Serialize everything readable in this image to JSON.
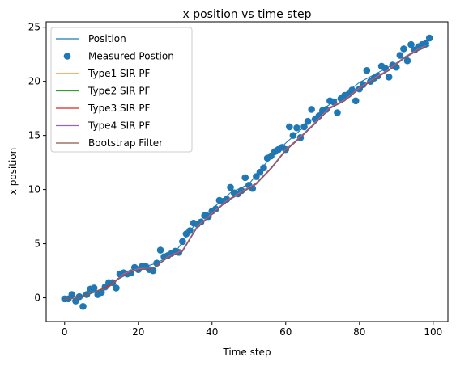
{
  "chart_data": {
    "type": "line",
    "title": "x position vs time step",
    "xlabel": "Time step",
    "ylabel": "x position",
    "xlim": [
      -5,
      104
    ],
    "ylim": [
      -2.2,
      25.5
    ],
    "xticks": [
      "0",
      "20",
      "40",
      "60",
      "80",
      "100"
    ],
    "yticks": [
      "0",
      "5",
      "10",
      "15",
      "20",
      "25"
    ],
    "grid": false,
    "legend_location": "upper-left",
    "colors": {
      "position": "#1f77b4",
      "measured": "#1f77b4",
      "type1": "#ff7f0e",
      "type2": "#2ca02c",
      "type3": "#d62728",
      "type4": "#9467bd",
      "bootstrap": "#8c564b"
    },
    "series": [
      {
        "name": "Position",
        "kind": "line",
        "x": [
          0,
          5,
          10,
          15,
          20,
          25,
          30,
          35,
          40,
          45,
          50,
          55,
          60,
          65,
          70,
          75,
          80,
          85,
          90,
          95,
          99
        ],
        "y": [
          0.0,
          0.2,
          0.8,
          1.8,
          2.7,
          3.2,
          4.2,
          6.6,
          8.2,
          9.7,
          10.5,
          12.6,
          14.3,
          15.8,
          17.4,
          18.6,
          19.9,
          20.8,
          21.7,
          22.7,
          23.3
        ]
      },
      {
        "name": "Measured Postion",
        "kind": "scatter",
        "x": [
          0,
          1,
          2,
          3,
          4,
          5,
          6,
          7,
          8,
          9,
          10,
          11,
          12,
          13,
          14,
          15,
          16,
          17,
          18,
          19,
          20,
          21,
          22,
          23,
          24,
          25,
          26,
          27,
          28,
          29,
          30,
          31,
          32,
          33,
          34,
          35,
          36,
          37,
          38,
          39,
          40,
          41,
          42,
          43,
          44,
          45,
          46,
          47,
          48,
          49,
          50,
          51,
          52,
          53,
          54,
          55,
          56,
          57,
          58,
          59,
          60,
          61,
          62,
          63,
          64,
          65,
          66,
          67,
          68,
          69,
          70,
          71,
          72,
          73,
          74,
          75,
          76,
          77,
          78,
          79,
          80,
          81,
          82,
          83,
          84,
          85,
          86,
          87,
          88,
          89,
          90,
          91,
          92,
          93,
          94,
          95,
          96,
          97,
          98,
          99
        ],
        "y": [
          -0.1,
          -0.1,
          0.3,
          -0.3,
          0.1,
          -0.8,
          0.3,
          0.8,
          0.9,
          0.3,
          0.5,
          1.0,
          1.4,
          1.4,
          0.9,
          2.2,
          2.3,
          2.2,
          2.3,
          2.8,
          2.6,
          2.9,
          2.9,
          2.6,
          2.5,
          3.2,
          4.4,
          3.8,
          3.9,
          4.1,
          4.3,
          4.2,
          5.2,
          5.9,
          6.2,
          6.9,
          6.8,
          7.0,
          7.6,
          7.5,
          8.0,
          8.2,
          9.0,
          8.9,
          9.1,
          10.2,
          9.7,
          9.6,
          9.9,
          11.1,
          10.4,
          10.1,
          11.2,
          11.6,
          12.0,
          12.9,
          13.1,
          13.5,
          13.7,
          13.9,
          13.7,
          15.8,
          15.0,
          15.7,
          14.8,
          15.8,
          16.3,
          17.4,
          16.5,
          16.8,
          17.3,
          17.4,
          18.2,
          18.1,
          17.1,
          18.4,
          18.7,
          18.8,
          19.2,
          18.2,
          19.3,
          19.7,
          21.0,
          20.0,
          20.3,
          20.5,
          21.4,
          21.2,
          20.4,
          21.5,
          21.3,
          22.4,
          23.0,
          21.9,
          23.4,
          22.9,
          23.2,
          23.4,
          23.5,
          24.0
        ]
      },
      {
        "name": "Type1 SIR PF",
        "kind": "line",
        "x": [
          0,
          4,
          8,
          12,
          16,
          20,
          24,
          28,
          32,
          36,
          40,
          44,
          48,
          52,
          56,
          60,
          64,
          68,
          72,
          76,
          80,
          84,
          88,
          92,
          96,
          98
        ],
        "y": [
          -0.1,
          0.0,
          0.5,
          1.0,
          2.2,
          2.7,
          2.7,
          3.8,
          4.4,
          6.6,
          7.8,
          9.0,
          9.8,
          10.6,
          12.0,
          13.7,
          14.9,
          16.2,
          17.6,
          18.3,
          19.4,
          20.3,
          21.1,
          22.2,
          23.0,
          23.3
        ]
      },
      {
        "name": "Type2 SIR PF",
        "kind": "line",
        "x": [
          0,
          4,
          8,
          12,
          16,
          20,
          24,
          28,
          32,
          36,
          40,
          44,
          48,
          52,
          56,
          60,
          64,
          68,
          72,
          76,
          80,
          84,
          88,
          92,
          96,
          98
        ],
        "y": [
          -0.1,
          0.0,
          0.5,
          1.0,
          2.2,
          2.6,
          2.7,
          3.8,
          4.3,
          6.6,
          7.7,
          9.0,
          9.7,
          10.5,
          12.0,
          13.6,
          14.8,
          16.1,
          17.5,
          18.2,
          19.4,
          20.2,
          21.1,
          22.2,
          23.0,
          23.2
        ]
      },
      {
        "name": "Type3 SIR PF",
        "kind": "line",
        "x": [
          0,
          4,
          8,
          12,
          16,
          20,
          24,
          28,
          32,
          36,
          40,
          44,
          48,
          52,
          56,
          60,
          64,
          68,
          72,
          76,
          80,
          84,
          88,
          92,
          96,
          98
        ],
        "y": [
          -0.1,
          0.0,
          0.5,
          1.1,
          2.2,
          2.6,
          2.7,
          3.8,
          4.3,
          6.6,
          7.7,
          9.0,
          9.7,
          10.5,
          12.0,
          13.6,
          14.8,
          16.1,
          17.5,
          18.3,
          19.4,
          20.2,
          21.1,
          22.2,
          23.0,
          23.2
        ]
      },
      {
        "name": "Type4 SIR PF",
        "kind": "line",
        "x": [
          0,
          4,
          8,
          12,
          16,
          20,
          24,
          28,
          32,
          36,
          40,
          44,
          48,
          52,
          56,
          60,
          64,
          68,
          72,
          76,
          80,
          84,
          88,
          92,
          96,
          98
        ],
        "y": [
          -0.1,
          0.0,
          0.5,
          1.0,
          2.2,
          2.7,
          2.7,
          3.8,
          4.4,
          6.6,
          7.8,
          9.0,
          9.8,
          10.6,
          12.0,
          13.7,
          14.9,
          16.2,
          17.6,
          18.3,
          19.4,
          20.3,
          21.1,
          22.2,
          23.0,
          23.3
        ]
      },
      {
        "name": "Bootstrap Filter",
        "kind": "line",
        "x": [
          0,
          4,
          8,
          12,
          16,
          20,
          24,
          28,
          32,
          36,
          40,
          44,
          48,
          52,
          56,
          60,
          64,
          68,
          72,
          76,
          80,
          84,
          88,
          92,
          96,
          98
        ],
        "y": [
          -0.1,
          0.0,
          0.5,
          1.0,
          2.1,
          2.6,
          2.7,
          3.7,
          4.3,
          6.5,
          7.7,
          8.9,
          9.7,
          10.5,
          11.9,
          13.6,
          14.8,
          16.1,
          17.5,
          18.2,
          19.3,
          20.2,
          21.0,
          22.1,
          22.9,
          23.2
        ]
      }
    ]
  }
}
